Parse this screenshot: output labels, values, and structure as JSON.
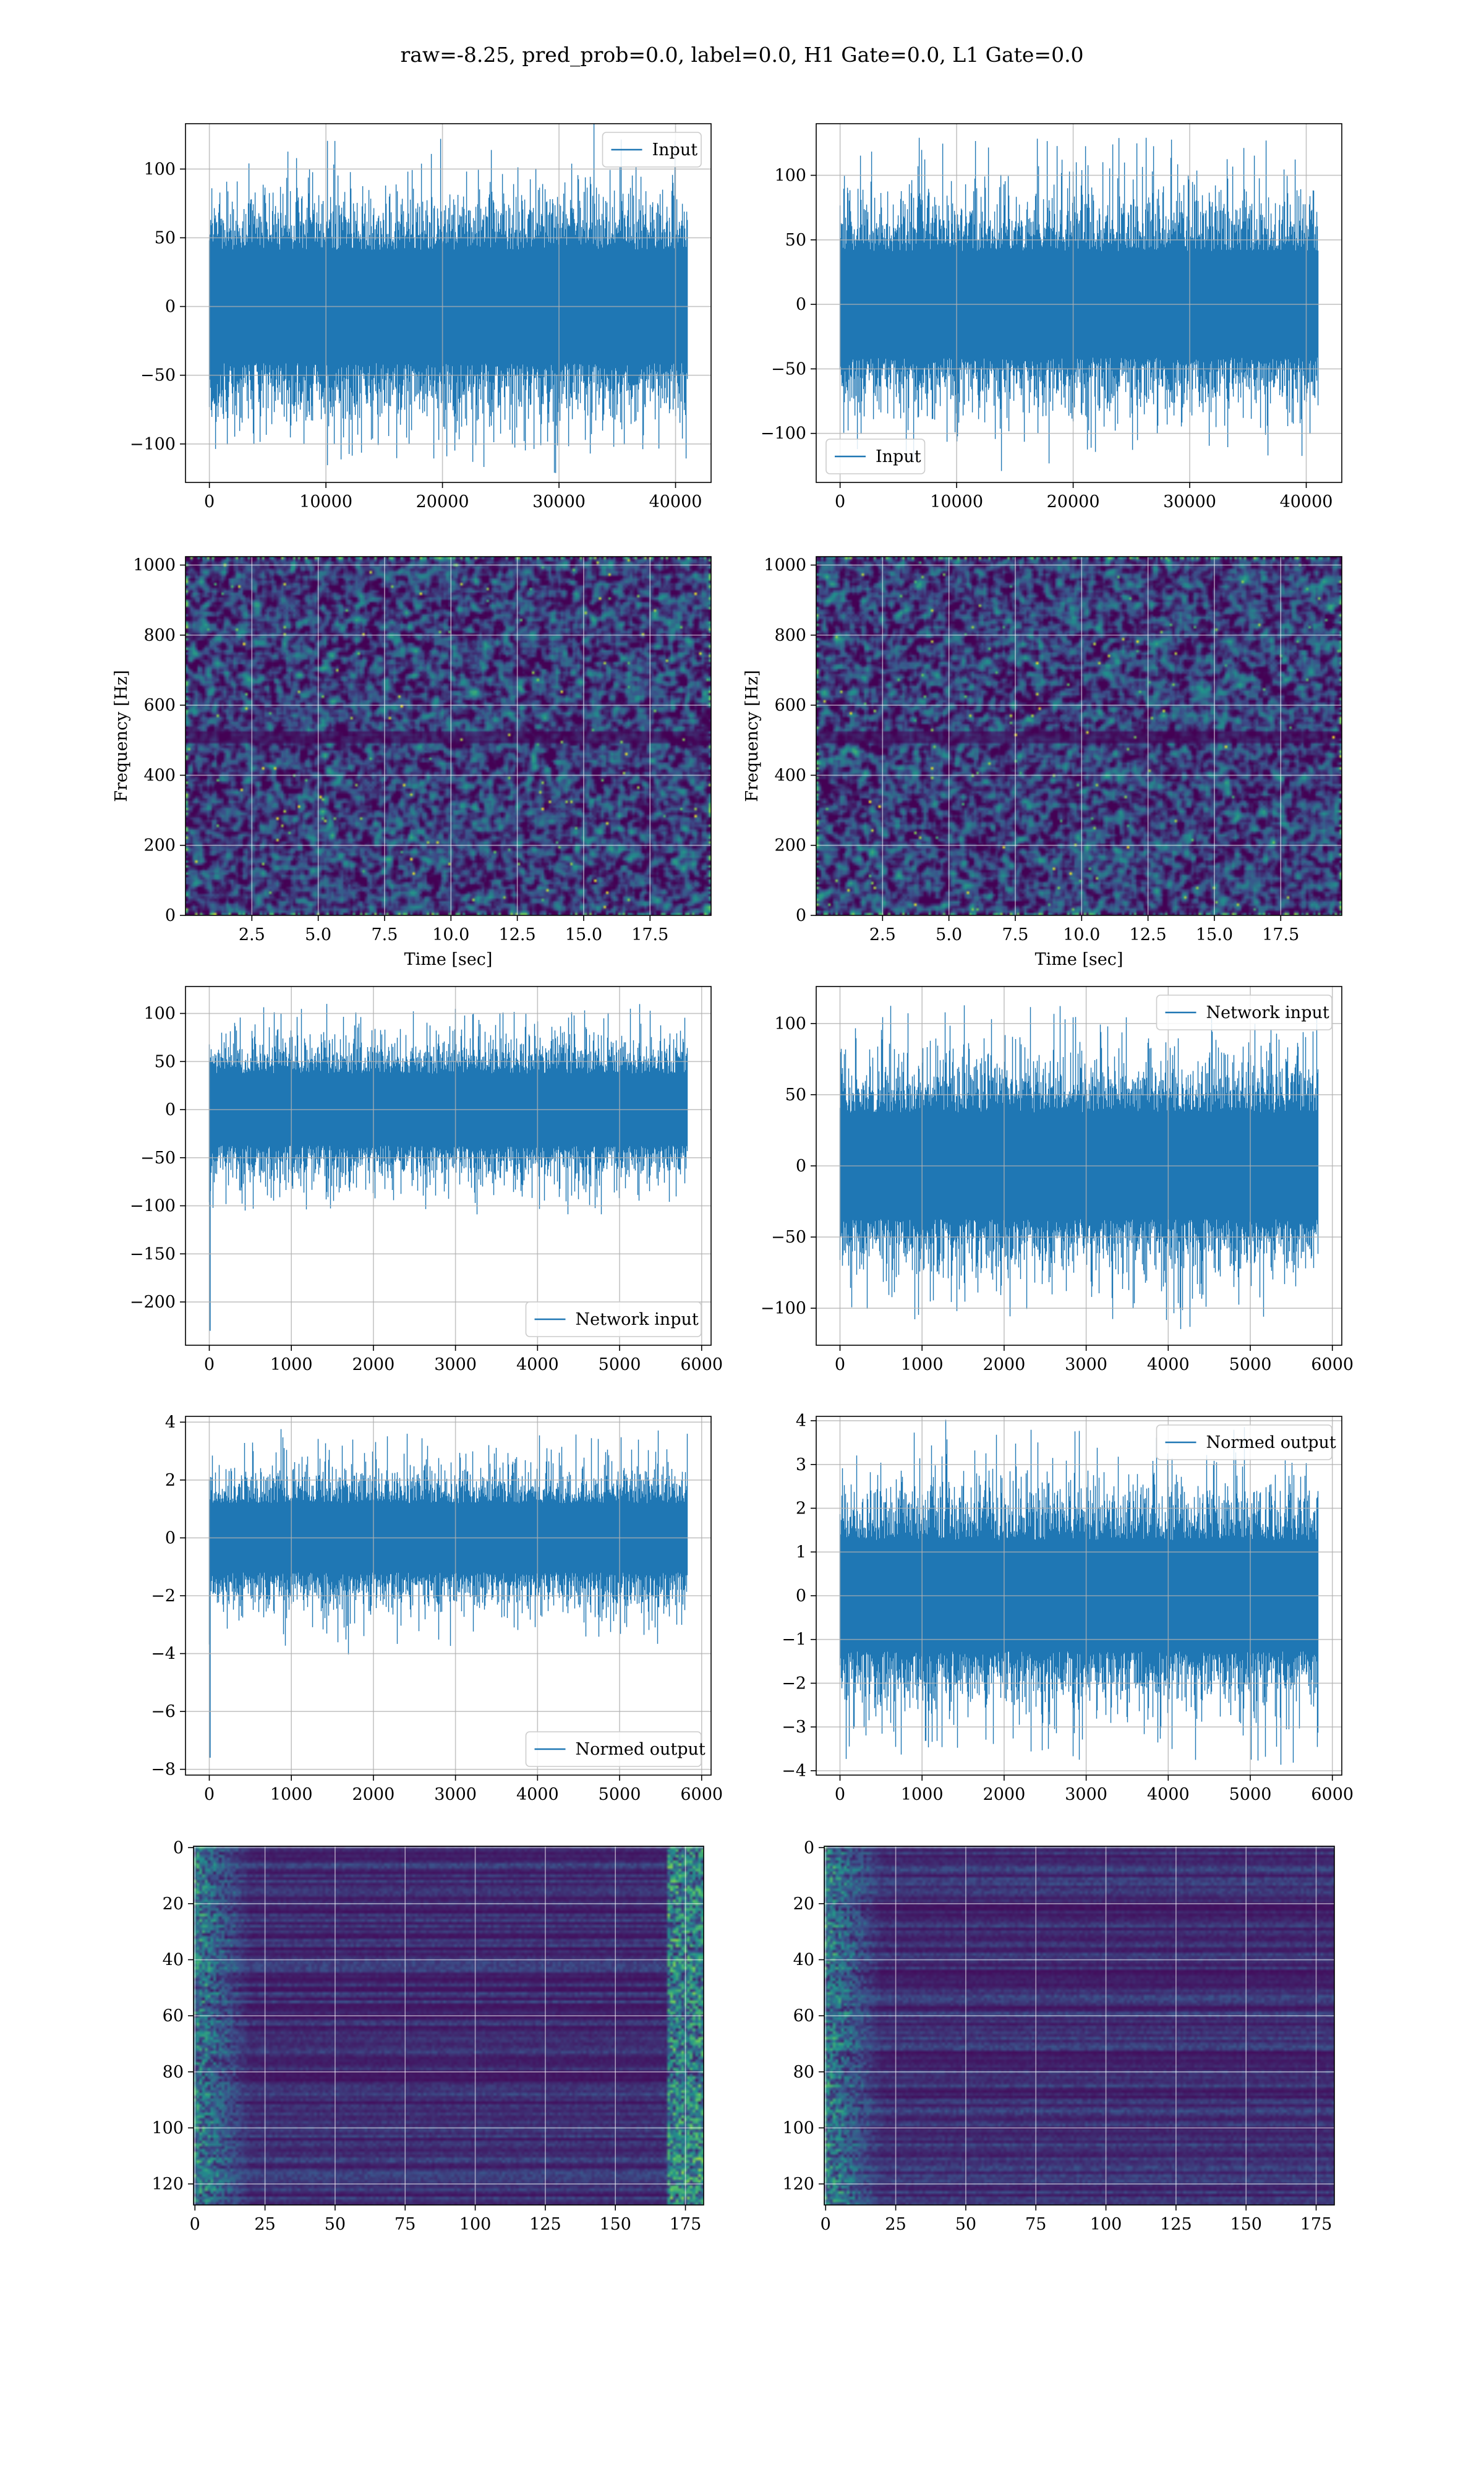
{
  "title": "raw=-8.25, pred_prob=0.0, label=0.0, H1 Gate=0.0, L1 Gate=0.0",
  "colors": {
    "line": "#1f77b4",
    "grid": "#b0b0b0",
    "viridis_low": "#440154",
    "viridis_mid": "#21918c",
    "viridis_high": "#fde725"
  },
  "chart_data": [
    {
      "id": "input-h1",
      "type": "line",
      "legend": "top-right",
      "series": [
        {
          "name": "Input",
          "points": 41000
        }
      ],
      "xlim": [
        -2050,
        43050
      ],
      "ylim": [
        -128,
        133
      ],
      "xticks": [
        0,
        10000,
        20000,
        30000,
        40000
      ],
      "yticks": [
        -100,
        -50,
        0,
        50,
        100
      ],
      "xlabel": "",
      "ylabel": "",
      "envelope": {
        "x_start": 0,
        "x_end": 41000,
        "typical": 55,
        "peak": 122
      }
    },
    {
      "id": "input-l1",
      "type": "line",
      "legend": "bottom-left",
      "series": [
        {
          "name": "Input",
          "points": 41000
        }
      ],
      "xlim": [
        -2050,
        43050
      ],
      "ylim": [
        -138,
        140
      ],
      "xticks": [
        0,
        10000,
        20000,
        30000,
        40000
      ],
      "yticks": [
        -100,
        -50,
        0,
        50,
        100
      ],
      "xlabel": "",
      "ylabel": "",
      "envelope": {
        "x_start": 0,
        "x_end": 41000,
        "typical": 55,
        "peak": 130
      }
    },
    {
      "id": "spectrogram-h1",
      "type": "heatmap",
      "colormap": "viridis",
      "xlim": [
        0,
        19.8
      ],
      "ylim": [
        0,
        1024
      ],
      "xticks": [
        2.5,
        5.0,
        7.5,
        10.0,
        12.5,
        15.0,
        17.5
      ],
      "yticks": [
        0,
        200,
        400,
        600,
        800,
        1000
      ],
      "xlabel": "Time [sec]",
      "ylabel": "Frequency [Hz]"
    },
    {
      "id": "spectrogram-l1",
      "type": "heatmap",
      "colormap": "viridis",
      "xlim": [
        0,
        19.8
      ],
      "ylim": [
        0,
        1024
      ],
      "xticks": [
        2.5,
        5.0,
        7.5,
        10.0,
        12.5,
        15.0,
        17.5
      ],
      "yticks": [
        0,
        200,
        400,
        600,
        800,
        1000
      ],
      "xlabel": "Time [sec]",
      "ylabel": "Frequency [Hz]"
    },
    {
      "id": "network-input-h1",
      "type": "line",
      "legend": "bottom-right",
      "series": [
        {
          "name": "Network input",
          "points": 5825
        }
      ],
      "xlim": [
        -290,
        6115
      ],
      "ylim": [
        -245,
        128
      ],
      "xticks": [
        0,
        1000,
        2000,
        3000,
        4000,
        5000,
        6000
      ],
      "yticks": [
        -200,
        -150,
        -100,
        -50,
        0,
        50,
        100
      ],
      "xlabel": "",
      "ylabel": "",
      "envelope": {
        "x_start": 0,
        "x_end": 5825,
        "typical": 50,
        "peak": 110,
        "spike": -230
      }
    },
    {
      "id": "network-input-l1",
      "type": "line",
      "legend": "top-right",
      "series": [
        {
          "name": "Network input",
          "points": 5825
        }
      ],
      "xlim": [
        -290,
        6115
      ],
      "ylim": [
        -126,
        126
      ],
      "xticks": [
        0,
        1000,
        2000,
        3000,
        4000,
        5000,
        6000
      ],
      "yticks": [
        -100,
        -50,
        0,
        50,
        100
      ],
      "xlabel": "",
      "ylabel": "",
      "envelope": {
        "x_start": 0,
        "x_end": 5825,
        "typical": 50,
        "peak": 115
      }
    },
    {
      "id": "normed-output-h1",
      "type": "line",
      "legend": "bottom-right",
      "series": [
        {
          "name": "Normed output",
          "points": 5825
        }
      ],
      "xlim": [
        -290,
        6115
      ],
      "ylim": [
        -8.2,
        4.2
      ],
      "xticks": [
        0,
        1000,
        2000,
        3000,
        4000,
        5000,
        6000
      ],
      "yticks": [
        -8,
        -6,
        -4,
        -2,
        0,
        2,
        4
      ],
      "xlabel": "",
      "ylabel": "",
      "envelope": {
        "x_start": 0,
        "x_end": 5825,
        "typical": 1.6,
        "peak": 3.8,
        "spike": -7.6
      }
    },
    {
      "id": "normed-output-l1",
      "type": "line",
      "legend": "top-right",
      "series": [
        {
          "name": "Normed output",
          "points": 5825
        }
      ],
      "xlim": [
        -290,
        6115
      ],
      "ylim": [
        -4.1,
        4.1
      ],
      "xticks": [
        0,
        1000,
        2000,
        3000,
        4000,
        5000,
        6000
      ],
      "yticks": [
        -4,
        -3,
        -2,
        -1,
        0,
        1,
        2,
        3,
        4
      ],
      "xlabel": "",
      "ylabel": "",
      "envelope": {
        "x_start": 0,
        "x_end": 5825,
        "typical": 1.7,
        "peak": 3.9
      }
    },
    {
      "id": "output-image-h1",
      "type": "heatmap",
      "colormap": "viridis",
      "xlim": [
        -0.5,
        181.5
      ],
      "ylim": [
        127.5,
        -0.5
      ],
      "xticks": [
        0,
        25,
        50,
        75,
        100,
        125,
        150,
        175
      ],
      "yticks": [
        0,
        20,
        40,
        60,
        80,
        100,
        120
      ],
      "xlabel": "",
      "ylabel": ""
    },
    {
      "id": "output-image-l1",
      "type": "heatmap",
      "colormap": "viridis",
      "xlim": [
        -0.5,
        181.5
      ],
      "ylim": [
        127.5,
        -0.5
      ],
      "xticks": [
        0,
        25,
        50,
        75,
        100,
        125,
        150,
        175
      ],
      "yticks": [
        0,
        20,
        40,
        60,
        80,
        100,
        120
      ],
      "xlabel": "",
      "ylabel": ""
    }
  ]
}
